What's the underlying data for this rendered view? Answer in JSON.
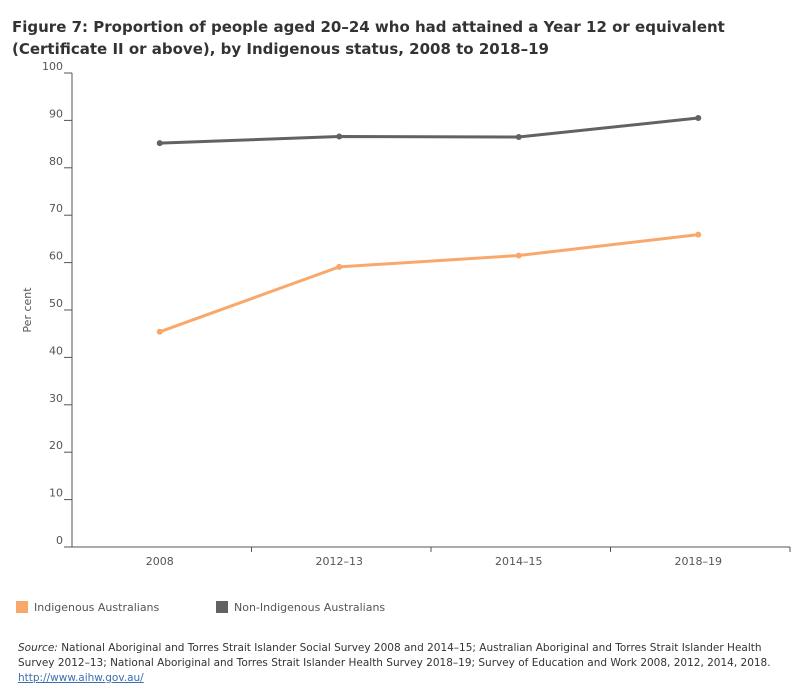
{
  "chart_data": {
    "type": "line",
    "title": "Figure 7: Proportion of people aged 20–24 who had attained a Year 12 or equivalent (Certificate II or above), by Indigenous status, 2008 to 2018–19",
    "y_label": "Per cent",
    "categories": [
      "2008",
      "2012–13",
      "2014–15",
      "2018–19"
    ],
    "series": [
      {
        "name": "Indigenous Australians",
        "color": "#f9a86b",
        "values": [
          45.4,
          59.1,
          61.5,
          65.9
        ]
      },
      {
        "name": "Non-Indigenous Australians",
        "color": "#5f6461",
        "values": [
          85.2,
          86.6,
          86.5,
          90.5
        ]
      }
    ],
    "ylim": [
      0,
      100
    ],
    "yticks": [
      0,
      10,
      20,
      30,
      40,
      50,
      60,
      70,
      80,
      90,
      100
    ],
    "grid": false,
    "source_label": "Source:",
    "source_text": "National Aboriginal and Torres Strait Islander Social Survey 2008 and 2014–15; Australian Aboriginal and Torres Strait Islander Health Survey 2012–13; National Aboriginal and Torres Strait Islander Health Survey 2018–19; Survey of Education and Work 2008, 2012, 2014, 2018.",
    "link": "http://www.aihw.gov.au/"
  }
}
